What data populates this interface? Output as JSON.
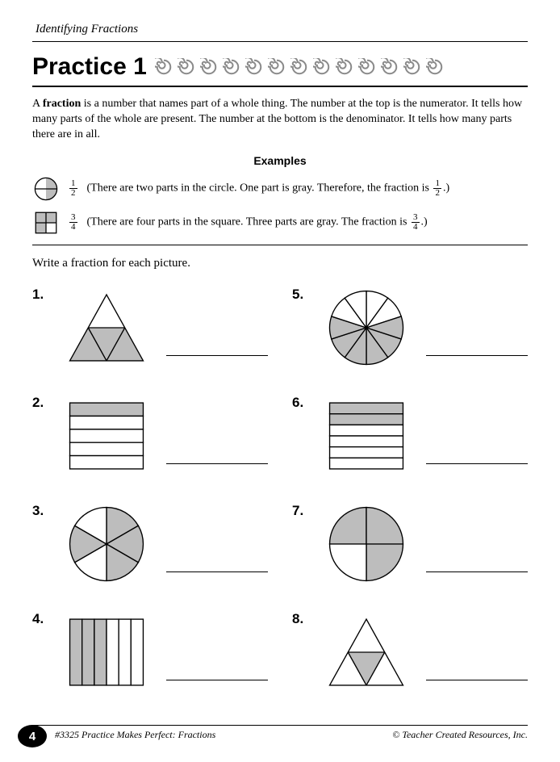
{
  "header": {
    "section_title": "Identifying Fractions",
    "practice_label": "Practice 1"
  },
  "spirals": {
    "count": 13,
    "fill_color": "#8a8a8a",
    "outline_color": "#8a8a8a"
  },
  "intro_text": "A <b>fraction</b> is a number that names part of a whole thing. The number at the top is the numerator. It tells how many parts of the whole are present. The number at the bottom is the denominator. It tells how many parts there are in all.",
  "examples_label": "Examples",
  "examples": [
    {
      "shape": "circle_halves",
      "gray_fill": "#bdbdbd",
      "fraction": {
        "num": "1",
        "den": "2"
      },
      "text_before": "(There are two parts in the circle. One part is gray. Therefore, the fraction is",
      "text_after": ".)"
    },
    {
      "shape": "square_quarters",
      "gray_fill": "#bdbdbd",
      "fraction": {
        "num": "3",
        "den": "4"
      },
      "text_before": "(There are four parts in the square. Three parts are gray. The fraction is",
      "text_after": ".)"
    }
  ],
  "instruction": "Write a fraction for each picture.",
  "gray_fill": "#bdbdbd",
  "stroke": "#000000",
  "problems": [
    {
      "n": "1.",
      "shape": "triangle_thirds",
      "shaded": [
        0,
        2
      ],
      "note": "2 of 3"
    },
    {
      "n": "5.",
      "shape": "circle_tenths",
      "shaded_count": 6
    },
    {
      "n": "2.",
      "shape": "rect_rows",
      "rows": 5,
      "shaded_rows": [
        0
      ]
    },
    {
      "n": "6.",
      "shape": "rect_rows",
      "rows": 6,
      "shaded_rows": [
        0,
        1
      ]
    },
    {
      "n": "3.",
      "shape": "circle_sixths",
      "shaded": [
        0,
        1,
        2,
        4
      ]
    },
    {
      "n": "7.",
      "shape": "circle_quarters",
      "shaded": [
        0,
        1,
        2
      ]
    },
    {
      "n": "4.",
      "shape": "rect_cols",
      "cols": 6,
      "shaded_cols": [
        0,
        1,
        2
      ]
    },
    {
      "n": "8.",
      "shape": "triangle_quarters",
      "shaded": [
        2
      ]
    }
  ],
  "footer": {
    "page_number": "4",
    "left": "#3325 Practice Makes Perfect: Fractions",
    "right": "© Teacher Created Resources, Inc."
  }
}
